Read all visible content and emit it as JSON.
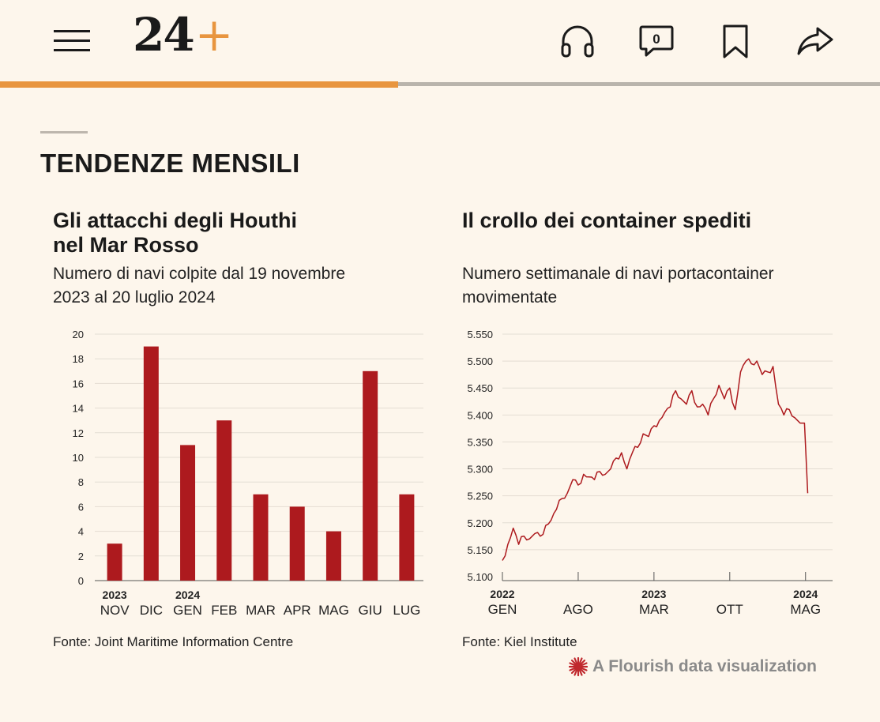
{
  "header": {
    "logo_main": "24",
    "logo_plus": "+",
    "comments_count": "0",
    "icons": [
      "menu-icon",
      "headphones-icon",
      "comment-icon",
      "bookmark-icon",
      "share-icon"
    ],
    "progress_fraction": 0.452,
    "accent_color": "#e8953f"
  },
  "section_title": "TENDENZE MENSILI",
  "charts": {
    "left": {
      "title_line1": "Gli attacchi degli Houthi",
      "title_line2": "nel Mar Rosso",
      "subtitle_line1": "Numero di navi colpite dal 19 novembre",
      "subtitle_line2": "2023 al 20 luglio 2024",
      "source": "Fonte: Joint Maritime Information Centre"
    },
    "right": {
      "title": "Il crollo dei container spediti",
      "subtitle_line1": "Numero settimanale di navi portacontainer",
      "subtitle_line2": "movimentate",
      "source": "Fonte: Kiel Institute"
    }
  },
  "flourish_label": "A Flourish data visualization",
  "chart_data": [
    {
      "type": "bar",
      "categories": [
        "NOV",
        "DIC",
        "GEN",
        "FEB",
        "MAR",
        "APR",
        "MAG",
        "GIU",
        "LUG"
      ],
      "year_labels": [
        {
          "category": "NOV",
          "year": "2023"
        },
        {
          "category": "GEN",
          "year": "2024"
        }
      ],
      "values": [
        3,
        19,
        11,
        13,
        7,
        6,
        4,
        17,
        7
      ],
      "ylim": [
        0,
        20
      ],
      "yticks": [
        "0",
        "2",
        "4",
        "6",
        "8",
        "10",
        "12",
        "14",
        "16",
        "18",
        "20"
      ],
      "grid": true,
      "color": "#ad1a1e"
    },
    {
      "type": "line",
      "x_range": [
        "2022-01",
        "2024-07"
      ],
      "ylim": [
        5100,
        5550
      ],
      "yticks": [
        "5.100",
        "5.150",
        "5.200",
        "5.250",
        "5.300",
        "5.350",
        "5.400",
        "5.450",
        "5.500",
        "5.550"
      ],
      "xticks": [
        {
          "month": 0,
          "label": "GEN",
          "year": "2022"
        },
        {
          "month": 7,
          "label": "AGO",
          "year": ""
        },
        {
          "month": 14,
          "label": "MAR",
          "year": "2023"
        },
        {
          "month": 21,
          "label": "OTT",
          "year": ""
        },
        {
          "month": 28,
          "label": "MAG",
          "year": "2024"
        }
      ],
      "series": [
        {
          "x_month": [
            0,
            0.5,
            1,
            1.5,
            2,
            2.5,
            3,
            3.5,
            4,
            4.5,
            5,
            5.5,
            6,
            6.5,
            7,
            7.5,
            8,
            8.5,
            9,
            9.5,
            10,
            10.5,
            11,
            11.5,
            12,
            12.5,
            13,
            13.5,
            14,
            14.5,
            15,
            15.5,
            16,
            16.5,
            17,
            17.5,
            18,
            18.5,
            19,
            19.5,
            20,
            20.5,
            21,
            21.5,
            22,
            22.5,
            23,
            23.5,
            24,
            24.5,
            25,
            25.5,
            26,
            26.5,
            27,
            27.5,
            28,
            28.5,
            29,
            29.5,
            30
          ],
          "y": [
            5130,
            5160,
            5190,
            5160,
            5175,
            5170,
            5180,
            5175,
            5195,
            5205,
            5225,
            5245,
            5255,
            5280,
            5270,
            5290,
            5285,
            5280,
            5295,
            5290,
            5300,
            5320,
            5330,
            5300,
            5330,
            5340,
            5365,
            5360,
            5380,
            5390,
            5405,
            5415,
            5445,
            5430,
            5420,
            5445,
            5415,
            5420,
            5400,
            5430,
            5455,
            5430,
            5450,
            5410,
            5480,
            5500,
            5495,
            5500,
            5475,
            5480,
            5490,
            5420,
            5400,
            5410,
            5395,
            5385,
            5255,
            5255,
            5255,
            5255,
            5255
          ],
          "color": "#ad1a1e"
        }
      ],
      "grid": true
    }
  ]
}
